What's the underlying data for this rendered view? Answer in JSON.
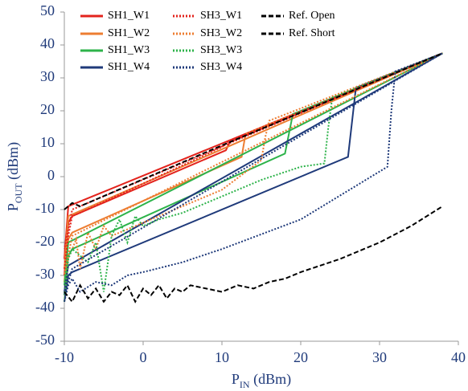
{
  "chart_data": {
    "type": "line",
    "ylabel": {
      "main": "P",
      "sub": "OUT",
      "rest": " (dBm)"
    },
    "xlabel": {
      "main": "P",
      "sub": "IN",
      "rest": " (dBm)"
    },
    "xlim": [
      -10,
      40
    ],
    "xticks": [
      -10,
      0,
      10,
      20,
      30,
      40
    ],
    "ylim": [
      -50,
      50
    ],
    "yticks": [
      -50,
      -40,
      -30,
      -20,
      -10,
      0,
      10,
      20,
      30,
      40,
      50
    ],
    "grid": false,
    "series": [
      {
        "name": "SH1_W1",
        "color": "#e3231c",
        "dash": "solid",
        "x": [
          -10,
          -9.5,
          -9,
          10.5,
          11,
          38,
          -9.5,
          -10
        ],
        "y": [
          -30,
          -14,
          -12,
          8,
          10.5,
          37.5,
          -9,
          -25
        ]
      },
      {
        "name": "SH1_W2",
        "color": "#ed7d31",
        "dash": "solid",
        "x": [
          -10,
          -9.5,
          -9,
          12.5,
          13,
          38,
          -9.5,
          -10
        ],
        "y": [
          -32,
          -19,
          -17,
          6,
          13,
          37.5,
          -12,
          -28
        ]
      },
      {
        "name": "SH1_W3",
        "color": "#2db34a",
        "dash": "solid",
        "x": [
          -10,
          -9.5,
          -9,
          18,
          19,
          38,
          -9.5,
          -10
        ],
        "y": [
          -36,
          -24,
          -22,
          7,
          19,
          37.5,
          -20,
          -33
        ]
      },
      {
        "name": "SH1_W4",
        "color": "#1f3a7a",
        "dash": "solid",
        "x": [
          -10,
          -9.5,
          -9,
          26,
          27,
          38,
          -9.5,
          -10
        ],
        "y": [
          -38,
          -30,
          -29,
          6,
          27,
          37.5,
          -27,
          -35
        ]
      },
      {
        "name": "SH3_W1",
        "color": "#e3231c",
        "dash": "dotted",
        "x": [
          -10,
          -9.5,
          -9,
          -8,
          10,
          11,
          38,
          -9,
          -10
        ],
        "y": [
          -28,
          -18,
          -12,
          -11,
          9,
          11,
          37.5,
          -10,
          -22
        ]
      },
      {
        "name": "SH3_W2",
        "color": "#ed7d31",
        "dash": "dotted",
        "x": [
          -10,
          -9.5,
          -8.5,
          -8,
          -7,
          -6,
          -5,
          -4,
          0,
          5,
          10,
          15,
          15.5,
          16,
          38,
          -9,
          -10
        ],
        "y": [
          -38,
          -25,
          -19,
          -28,
          -17,
          -22,
          -15,
          -18,
          -14,
          -9,
          -4,
          5,
          12,
          17,
          37.5,
          -18,
          -30
        ]
      },
      {
        "name": "SH3_W3",
        "color": "#2db34a",
        "dash": "dotted",
        "x": [
          -10,
          -9.5,
          -9,
          -7,
          -6,
          -5,
          -4,
          -3,
          -2,
          -1,
          0,
          2,
          5,
          10,
          15,
          20,
          23,
          23.5,
          24,
          38
        ],
        "y": [
          -38,
          -25,
          -22,
          -26,
          -20,
          -35,
          -18,
          -13,
          -20,
          -12,
          -15,
          -13,
          -11,
          -6,
          -1,
          3,
          4,
          15,
          24,
          37.5
        ]
      },
      {
        "name": "SH3_W4",
        "color": "#1f3a7a",
        "dash": "dotted",
        "x": [
          -10,
          -9.5,
          -9,
          -8,
          -6,
          -4,
          -2,
          0,
          5,
          10,
          20,
          31,
          31.5,
          32,
          38,
          -9,
          -10
        ],
        "y": [
          -38,
          -33,
          -31,
          -35,
          -32,
          -33,
          -30,
          -29,
          -26,
          -22,
          -13,
          3,
          20,
          32,
          37.5,
          -28,
          -36
        ]
      },
      {
        "name": "Ref. Open",
        "color": "#000000",
        "dash": "dashed",
        "x": [
          -10,
          -9,
          -8,
          10,
          38
        ],
        "y": [
          -10,
          -8,
          -9,
          9.5,
          37.5
        ]
      },
      {
        "name": "Ref. Short",
        "color": "#000000",
        "dash": "dashed",
        "x": [
          -10,
          -9,
          -8,
          -7,
          -6,
          -5,
          -4,
          -3,
          -2,
          -1,
          0,
          1,
          2,
          3,
          4,
          5,
          6,
          8,
          10,
          12,
          14,
          16,
          18,
          20,
          25,
          30,
          34,
          38
        ],
        "y": [
          -35,
          -38,
          -33,
          -37,
          -34,
          -38,
          -35,
          -36,
          -33,
          -38,
          -34,
          -36,
          -33,
          -37,
          -34,
          -35,
          -33,
          -34,
          -35,
          -33,
          -34,
          -32,
          -31,
          -29,
          -25,
          -20,
          -15,
          -9
        ]
      }
    ]
  }
}
